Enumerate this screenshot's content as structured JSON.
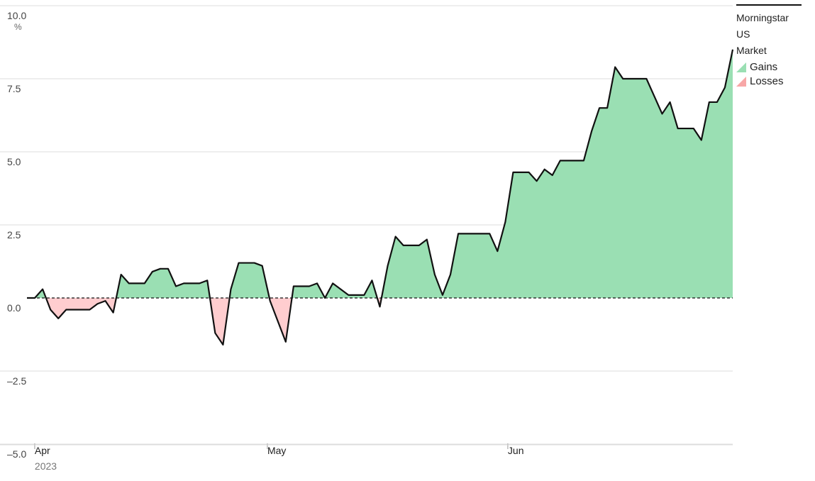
{
  "chart_data": {
    "type": "area",
    "unit_label": "%",
    "series": [
      {
        "name": "Morningstar US Market",
        "values": [
          0.0,
          0.0,
          0.3,
          -0.4,
          -0.7,
          -0.4,
          -0.4,
          -0.4,
          -0.4,
          -0.2,
          -0.1,
          -0.5,
          0.8,
          0.5,
          0.5,
          0.5,
          0.9,
          1.0,
          1.0,
          0.4,
          0.5,
          0.5,
          0.5,
          0.6,
          -1.2,
          -1.6,
          0.3,
          1.2,
          1.2,
          1.2,
          1.1,
          -0.1,
          -0.8,
          -1.5,
          0.4,
          0.4,
          0.4,
          0.5,
          0.0,
          0.5,
          0.3,
          0.1,
          0.1,
          0.1,
          0.6,
          -0.3,
          1.1,
          2.1,
          1.8,
          1.8,
          1.8,
          2.0,
          0.8,
          0.1,
          0.8,
          2.2,
          2.2,
          2.2,
          2.2,
          2.2,
          1.6,
          2.6,
          4.3,
          4.3,
          4.3,
          4.0,
          4.4,
          4.2,
          4.7,
          4.7,
          4.7,
          4.7,
          5.7,
          6.5,
          6.5,
          7.9,
          7.5,
          7.5,
          7.5,
          7.5,
          6.9,
          6.3,
          6.7,
          5.8,
          5.8,
          5.8,
          5.4,
          6.7,
          6.7,
          7.2,
          8.5
        ]
      }
    ],
    "x_range": [
      "2023-03-31",
      "2023-06-30"
    ],
    "x_ticks": [
      {
        "date": "2023-04-01",
        "label": "Apr",
        "sublabel": "2023"
      },
      {
        "date": "2023-05-01",
        "label": "May",
        "sublabel": ""
      },
      {
        "date": "2023-06-01",
        "label": "Jun",
        "sublabel": ""
      }
    ],
    "y_ticks": [
      10.0,
      7.5,
      5.0,
      2.5,
      0.0,
      -2.5,
      -5.0
    ],
    "y_tick_labels": [
      "10.0",
      "7.5",
      "5.0",
      "2.5",
      "0.0",
      "–2.5",
      "–5.0"
    ],
    "ylim": [
      -5.0,
      10.0
    ],
    "grid": true,
    "legend": {
      "placement": "top-right",
      "title": [
        "Morningstar",
        "US",
        "Market"
      ],
      "entries": [
        {
          "label": "Gains",
          "color": "#9adfb3"
        },
        {
          "label": "Losses",
          "color": "#f7a7a7"
        }
      ]
    },
    "colors": {
      "line": "#111111",
      "gains": "#9adfb3",
      "losses": "#ffcdcf",
      "grid": "#dddddd",
      "baseline": "#111111"
    }
  }
}
